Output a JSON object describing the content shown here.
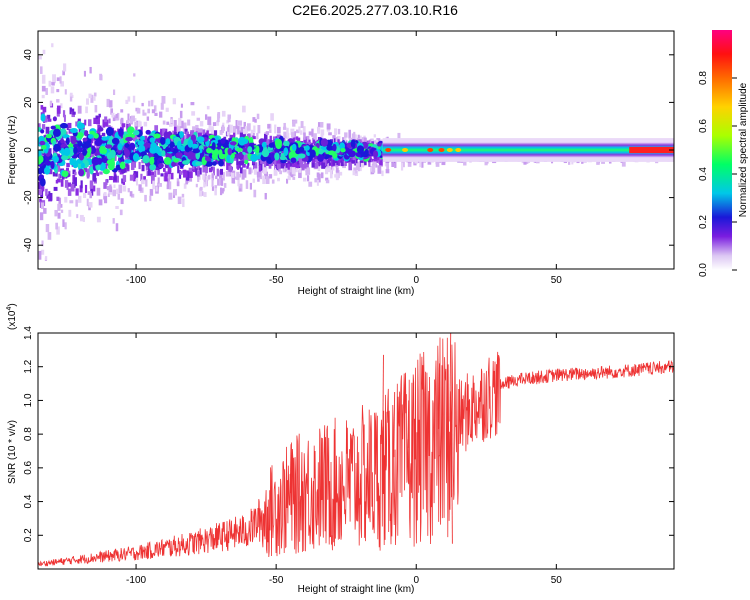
{
  "title": "C2E6.2025.277.03.10.R16",
  "chart_data": [
    {
      "type": "heatmap",
      "title": "C2E6.2025.277.03.10.R16",
      "xlabel": "Height of straight line (km)",
      "ylabel": "Frequency (Hz)",
      "xlim": [
        -135,
        92
      ],
      "ylim": [
        -50,
        50
      ],
      "xticks": [
        -100,
        -50,
        0,
        50
      ],
      "yticks": [
        -40,
        -20,
        0,
        20,
        40
      ],
      "colorbar": {
        "label": "Normalized spectral amplitude",
        "range": [
          0,
          1
        ],
        "ticks": [
          {
            "v": 0.0,
            "label": "0.0"
          },
          {
            "v": 0.2,
            "label": "0.2"
          },
          {
            "v": 0.4,
            "label": "0.4"
          },
          {
            "v": 0.6,
            "label": "0.6"
          },
          {
            "v": 0.8,
            "label": "0.8"
          }
        ]
      },
      "band_center_hz": 0,
      "scatter_envelope": [
        {
          "x": -135,
          "spread": 48
        },
        {
          "x": -100,
          "spread": 25
        },
        {
          "x": -60,
          "spread": 16
        },
        {
          "x": -20,
          "spread": 10
        },
        {
          "x": 0,
          "spread": 4
        },
        {
          "x": 75,
          "spread": 3
        },
        {
          "x": 92,
          "spread": 2
        }
      ]
    },
    {
      "type": "line",
      "xlabel": "Height of straight line (km)",
      "ylabel": "SNR (10 * v/v)",
      "multiplier_label": "(x10",
      "multiplier_exp": "4",
      "xlim": [
        -135,
        92
      ],
      "ylim": [
        0,
        1.4
      ],
      "xticks": [
        -100,
        -50,
        0,
        50
      ],
      "yticks": [
        0.2,
        0.4,
        0.6,
        0.8,
        1.0,
        1.2,
        1.4
      ],
      "series": [
        {
          "name": "SNR",
          "color": "#ee3333",
          "envelope": [
            {
              "x": -135,
              "y": 0.03
            },
            {
              "x": -120,
              "y": 0.06
            },
            {
              "x": -100,
              "y": 0.1
            },
            {
              "x": -80,
              "y": 0.16
            },
            {
              "x": -60,
              "y": 0.24
            },
            {
              "x": -50,
              "y": 0.4
            },
            {
              "x": -40,
              "y": 0.5
            },
            {
              "x": -25,
              "y": 0.55
            },
            {
              "x": -12,
              "y": 0.62
            },
            {
              "x": 0,
              "y": 0.75
            },
            {
              "x": 10,
              "y": 0.85
            },
            {
              "x": 18,
              "y": 0.95
            },
            {
              "x": 25,
              "y": 1.05
            },
            {
              "x": 35,
              "y": 1.12
            },
            {
              "x": 50,
              "y": 1.15
            },
            {
              "x": 70,
              "y": 1.17
            },
            {
              "x": 92,
              "y": 1.2
            }
          ],
          "spikes": [
            {
              "x": 12,
              "y": 1.4
            },
            {
              "x": 12.6,
              "y": 0.15
            },
            {
              "x": 8,
              "y": 1.22
            },
            {
              "x": -12,
              "y": 1.27
            },
            {
              "x": -8,
              "y": 1.05
            },
            {
              "x": -3,
              "y": 1.0
            },
            {
              "x": -45,
              "y": 0.74
            }
          ]
        }
      ]
    }
  ]
}
